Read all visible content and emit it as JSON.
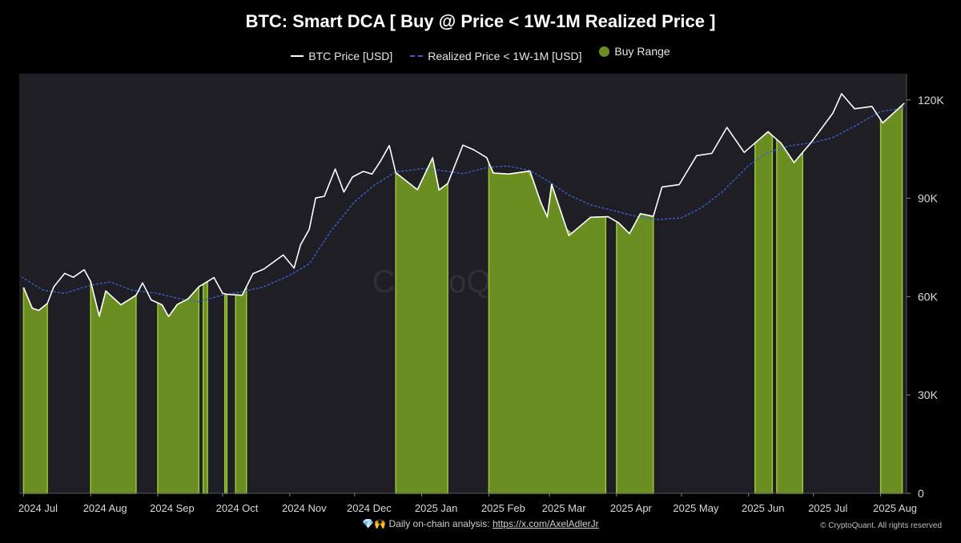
{
  "chart_data": {
    "type": "area",
    "title": "BTC: Smart DCA [ Buy @ Price < 1W-1M Realized Price ]",
    "legend": {
      "placement": "top-center",
      "entries": [
        "BTC Price [USD]",
        "Realized Price < 1W-1M [USD]",
        "Buy Range"
      ]
    },
    "x_tick_labels": [
      "2024 Jul",
      "2024 Aug",
      "2024 Sep",
      "2024 Oct",
      "2024 Nov",
      "2024 Dec",
      "2025 Jan",
      "2025 Feb",
      "2025 Mar",
      "2025 Apr",
      "2025 May",
      "2025 Jun",
      "2025 Jul",
      "2025 Aug"
    ],
    "y_tick_labels": [
      "0",
      "30K",
      "60K",
      "90K",
      "120K"
    ],
    "ylim": [
      0,
      128000
    ],
    "xlim": [
      "2024-06-29",
      "2025-08-13"
    ],
    "grid": false,
    "watermark": "CryptoQuant",
    "colors": {
      "price": "#ffffff",
      "realized": "#3a5fd0",
      "buy": "#6b8e23",
      "buy_edge": "#9bc53d",
      "background": "#1e1e24"
    },
    "series": [
      {
        "name": "BTC Price [USD]",
        "points": [
          [
            "2024-07-01",
            62800
          ],
          [
            "2024-07-05",
            56500
          ],
          [
            "2024-07-08",
            55800
          ],
          [
            "2024-07-12",
            57900
          ],
          [
            "2024-07-15",
            63000
          ],
          [
            "2024-07-20",
            67100
          ],
          [
            "2024-07-24",
            65900
          ],
          [
            "2024-07-29",
            68200
          ],
          [
            "2024-08-01",
            64600
          ],
          [
            "2024-08-05",
            54000
          ],
          [
            "2024-08-08",
            61700
          ],
          [
            "2024-08-15",
            57500
          ],
          [
            "2024-08-22",
            60400
          ],
          [
            "2024-08-25",
            64200
          ],
          [
            "2024-08-29",
            59000
          ],
          [
            "2024-09-03",
            57500
          ],
          [
            "2024-09-06",
            53900
          ],
          [
            "2024-09-10",
            57600
          ],
          [
            "2024-09-15",
            59300
          ],
          [
            "2024-09-20",
            63000
          ],
          [
            "2024-09-27",
            65800
          ],
          [
            "2024-10-01",
            61000
          ],
          [
            "2024-10-03",
            60700
          ],
          [
            "2024-10-10",
            60400
          ],
          [
            "2024-10-15",
            67000
          ],
          [
            "2024-10-20",
            68400
          ],
          [
            "2024-10-29",
            72700
          ],
          [
            "2024-11-03",
            68700
          ],
          [
            "2024-11-06",
            75800
          ],
          [
            "2024-11-10",
            80500
          ],
          [
            "2024-11-13",
            90100
          ],
          [
            "2024-11-17",
            90600
          ],
          [
            "2024-11-22",
            98900
          ],
          [
            "2024-11-26",
            91900
          ],
          [
            "2024-11-30",
            96500
          ],
          [
            "2024-12-05",
            98200
          ],
          [
            "2024-12-09",
            97400
          ],
          [
            "2024-12-13",
            101400
          ],
          [
            "2024-12-17",
            106100
          ],
          [
            "2024-12-20",
            97800
          ],
          [
            "2024-12-30",
            92600
          ],
          [
            "2025-01-06",
            102300
          ],
          [
            "2025-01-09",
            92500
          ],
          [
            "2025-01-13",
            94500
          ],
          [
            "2025-01-20",
            106200
          ],
          [
            "2025-01-25",
            104800
          ],
          [
            "2025-01-31",
            102400
          ],
          [
            "2025-02-03",
            97700
          ],
          [
            "2025-02-10",
            97400
          ],
          [
            "2025-02-20",
            98300
          ],
          [
            "2025-02-25",
            88700
          ],
          [
            "2025-02-28",
            84300
          ],
          [
            "2025-03-02",
            94300
          ],
          [
            "2025-03-10",
            78600
          ],
          [
            "2025-03-20",
            84200
          ],
          [
            "2025-03-28",
            84400
          ],
          [
            "2025-04-02",
            82500
          ],
          [
            "2025-04-07",
            79200
          ],
          [
            "2025-04-12",
            85300
          ],
          [
            "2025-04-18",
            84500
          ],
          [
            "2025-04-22",
            93400
          ],
          [
            "2025-04-30",
            94200
          ],
          [
            "2025-05-08",
            103000
          ],
          [
            "2025-05-15",
            103700
          ],
          [
            "2025-05-22",
            111600
          ],
          [
            "2025-05-30",
            104000
          ],
          [
            "2025-06-10",
            110300
          ],
          [
            "2025-06-16",
            106800
          ],
          [
            "2025-06-22",
            100900
          ],
          [
            "2025-06-30",
            107100
          ],
          [
            "2025-07-10",
            116000
          ],
          [
            "2025-07-14",
            121900
          ],
          [
            "2025-07-20",
            117300
          ],
          [
            "2025-07-28",
            118000
          ],
          [
            "2025-08-02",
            113000
          ],
          [
            "2025-08-08",
            116600
          ],
          [
            "2025-08-12",
            119000
          ]
        ]
      },
      {
        "name": "Realized Price < 1W-1M [USD]",
        "points": [
          [
            "2024-06-30",
            66000
          ],
          [
            "2024-07-10",
            62000
          ],
          [
            "2024-07-20",
            61000
          ],
          [
            "2024-08-01",
            63500
          ],
          [
            "2024-08-10",
            64500
          ],
          [
            "2024-08-20",
            62000
          ],
          [
            "2024-09-01",
            61000
          ],
          [
            "2024-09-10",
            59500
          ],
          [
            "2024-09-20",
            58500
          ],
          [
            "2024-10-01",
            60500
          ],
          [
            "2024-10-10",
            61500
          ],
          [
            "2024-10-20",
            63000
          ],
          [
            "2024-11-01",
            66500
          ],
          [
            "2024-11-10",
            70000
          ],
          [
            "2024-11-20",
            80000
          ],
          [
            "2024-12-01",
            89000
          ],
          [
            "2024-12-10",
            94000
          ],
          [
            "2024-12-20",
            98000
          ],
          [
            "2025-01-01",
            99000
          ],
          [
            "2025-01-10",
            98500
          ],
          [
            "2025-01-20",
            97500
          ],
          [
            "2025-02-01",
            99500
          ],
          [
            "2025-02-10",
            99800
          ],
          [
            "2025-02-20",
            98500
          ],
          [
            "2025-03-01",
            95000
          ],
          [
            "2025-03-10",
            91000
          ],
          [
            "2025-03-20",
            88000
          ],
          [
            "2025-04-01",
            86000
          ],
          [
            "2025-04-10",
            84500
          ],
          [
            "2025-04-20",
            83500
          ],
          [
            "2025-05-01",
            84000
          ],
          [
            "2025-05-10",
            87000
          ],
          [
            "2025-05-20",
            92000
          ],
          [
            "2025-06-01",
            100000
          ],
          [
            "2025-06-10",
            104000
          ],
          [
            "2025-06-20",
            106000
          ],
          [
            "2025-07-01",
            107000
          ],
          [
            "2025-07-10",
            108500
          ],
          [
            "2025-07-20",
            112000
          ],
          [
            "2025-08-01",
            116500
          ],
          [
            "2025-08-12",
            117500
          ]
        ]
      },
      {
        "name": "Buy Range",
        "ranges": [
          [
            "2024-07-01",
            "2024-07-12"
          ],
          [
            "2024-08-01",
            "2024-08-22"
          ],
          [
            "2024-09-01",
            "2024-09-20"
          ],
          [
            "2024-09-22",
            "2024-09-24"
          ],
          [
            "2024-10-02",
            "2024-10-03"
          ],
          [
            "2024-10-07",
            "2024-10-12"
          ],
          [
            "2024-12-20",
            "2025-01-13"
          ],
          [
            "2025-02-01",
            "2025-03-27"
          ],
          [
            "2025-04-01",
            "2025-04-18"
          ],
          [
            "2025-06-04",
            "2025-06-12"
          ],
          [
            "2025-06-14",
            "2025-06-26"
          ],
          [
            "2025-08-01",
            "2025-08-11"
          ]
        ]
      }
    ]
  },
  "footer": {
    "icons": "💎🙌",
    "note": "Daily on-chain analysis:",
    "link": "https://x.com/AxelAdlerJr",
    "copyright": "© CryptoQuant. All rights reserved"
  }
}
